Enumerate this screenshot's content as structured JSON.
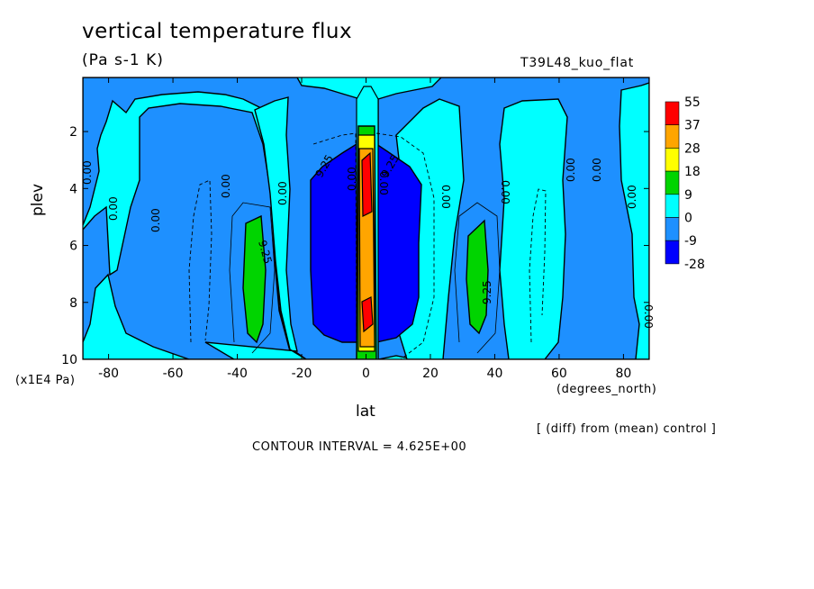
{
  "chart_data": {
    "type": "contour",
    "title": "vertical temperature flux",
    "subtitle": "(Pa s-1 K)",
    "run_label": "T39L48_kuo_flat",
    "xlabel": "lat",
    "x_unit": "(degrees_north)",
    "ylabel": "plev",
    "y_unit": "(x1E4 Pa)",
    "xlim": [
      -88,
      88
    ],
    "ylim": [
      10,
      0.1
    ],
    "x_ticks": [
      -80,
      -60,
      -40,
      -20,
      0,
      20,
      40,
      60,
      80
    ],
    "x_tick_labels": [
      "-80",
      "-60",
      "-40",
      "-20",
      "0",
      "20",
      "40",
      "60",
      "80"
    ],
    "y_ticks": [
      2,
      4,
      6,
      8,
      10
    ],
    "y_tick_labels": [
      "2",
      "4",
      "6",
      "8",
      "10"
    ],
    "note": "[ (diff) from (mean) control ]",
    "contour_interval": "CONTOUR INTERVAL = 4.625E+00",
    "colorbar": {
      "levels": [
        "55",
        "37",
        "28",
        "18",
        "9",
        "0",
        "-9",
        "-28"
      ],
      "colors": [
        "#ff0000",
        "#ffa500",
        "#ffff00",
        "#00d400",
        "#00ffff",
        "#1e90ff",
        "#0000ff"
      ]
    },
    "contour_labels": [
      "0.00",
      "0.00",
      "0.00",
      "0.00",
      "0.00",
      "9.25",
      "9.25",
      "9.25",
      "9.25",
      "0.00",
      "0.00",
      "0.00",
      "0.00",
      "0.00",
      "0.00",
      "0.00",
      "0.00"
    ],
    "grid": false
  }
}
